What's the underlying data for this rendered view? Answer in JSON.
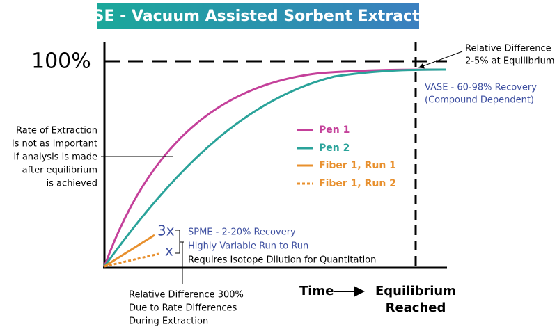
{
  "header": {
    "title": "VASE - Vacuum Assisted Sorbent Extraction"
  },
  "axes": {
    "y_top_label": "100%",
    "x_label": "Time",
    "x_end_label": [
      "Equilibrium",
      "Reached"
    ]
  },
  "legend": [
    "Pen 1",
    "Pen 2",
    "Fiber 1, Run 1",
    "Fiber 1, Run 2"
  ],
  "annotations": {
    "rate_note": [
      "Rate of Extraction",
      "is not as important",
      "if analysis is made",
      "after equilibrium",
      "is achieved"
    ],
    "equilibrium_note": [
      "Relative Difference",
      "2-5% at Equilibrium"
    ],
    "vase_note": [
      "VASE - 60-98% Recovery",
      "(Compound Dependent)"
    ],
    "fiber_marks": [
      "3x",
      "x"
    ],
    "spme_note": [
      "SPME - 2-20% Recovery",
      "Highly Variable Run to Run",
      "Requires Isotope Dilution for Quantitation"
    ],
    "rate_difference_note": [
      "Relative Difference 300%",
      "Due to Rate Differences",
      "During Extraction"
    ]
  }
}
